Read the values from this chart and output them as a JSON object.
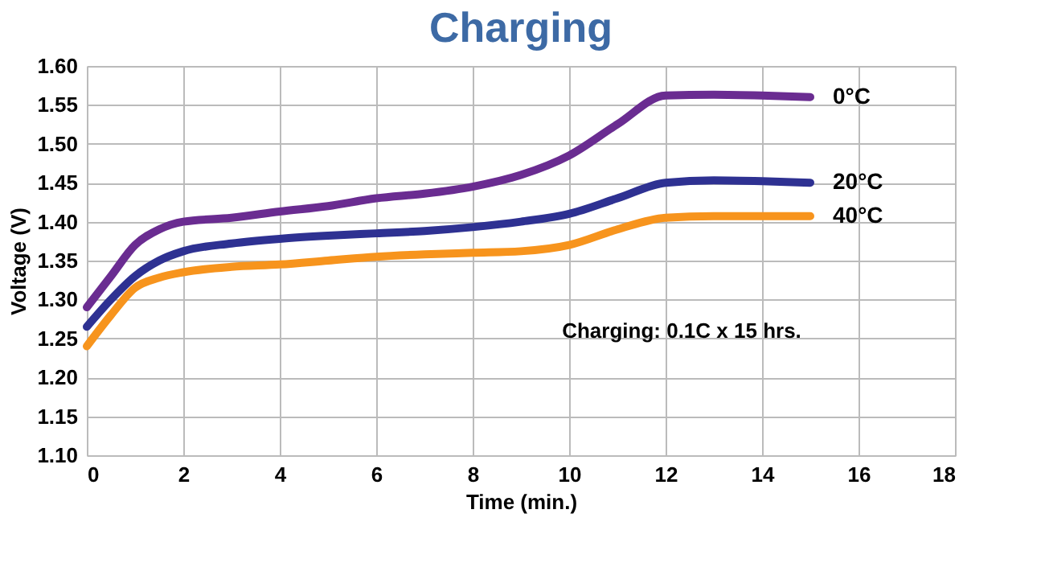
{
  "chart_data": {
    "type": "line",
    "title": "Charging",
    "xlabel": "Time (min.)",
    "ylabel": "Voltage (V)",
    "x": [
      0,
      0.5,
      1,
      1.5,
      2,
      3,
      4,
      5,
      6,
      7,
      8,
      9,
      10,
      11,
      12,
      13,
      14,
      15
    ],
    "series": [
      {
        "name": "0°C",
        "color": "#6a2c91",
        "values": [
          1.29,
          1.33,
          1.37,
          1.39,
          1.4,
          1.405,
          1.413,
          1.42,
          1.43,
          1.436,
          1.445,
          1.46,
          1.485,
          1.525,
          1.562,
          1.563,
          1.562,
          1.56
        ]
      },
      {
        "name": "20°C",
        "color": "#2e3192",
        "values": [
          1.265,
          1.3,
          1.33,
          1.35,
          1.362,
          1.372,
          1.378,
          1.382,
          1.385,
          1.388,
          1.393,
          1.4,
          1.41,
          1.43,
          1.45,
          1.453,
          1.452,
          1.45
        ]
      },
      {
        "name": "40°C",
        "color": "#f7941d",
        "values": [
          1.24,
          1.28,
          1.315,
          1.328,
          1.335,
          1.342,
          1.345,
          1.35,
          1.355,
          1.358,
          1.36,
          1.362,
          1.37,
          1.39,
          1.405,
          1.407,
          1.407,
          1.407
        ]
      }
    ],
    "xlim": [
      0,
      18
    ],
    "xticks": [
      0,
      2,
      4,
      6,
      8,
      10,
      12,
      14,
      16,
      18
    ],
    "ylim": [
      1.1,
      1.6
    ],
    "yticks": [
      {
        "value": 1.1,
        "label": "1.10"
      },
      {
        "value": 1.15,
        "label": "1.15"
      },
      {
        "value": 1.2,
        "label": "1.20"
      },
      {
        "value": 1.25,
        "label": "1.25"
      },
      {
        "value": 1.3,
        "label": "1.30"
      },
      {
        "value": 1.35,
        "label": "1.35"
      },
      {
        "value": 1.4,
        "label": "1.40"
      },
      {
        "value": 1.45,
        "label": "1.45"
      },
      {
        "value": 1.5,
        "label": "1.50"
      },
      {
        "value": 1.55,
        "label": "1.55"
      },
      {
        "value": 1.6,
        "label": "1.60"
      }
    ],
    "annotations": [
      "Charging: 0.1C x 15 hrs."
    ],
    "grid": true,
    "legend": "right",
    "line_style": "solid",
    "marker": "none"
  }
}
